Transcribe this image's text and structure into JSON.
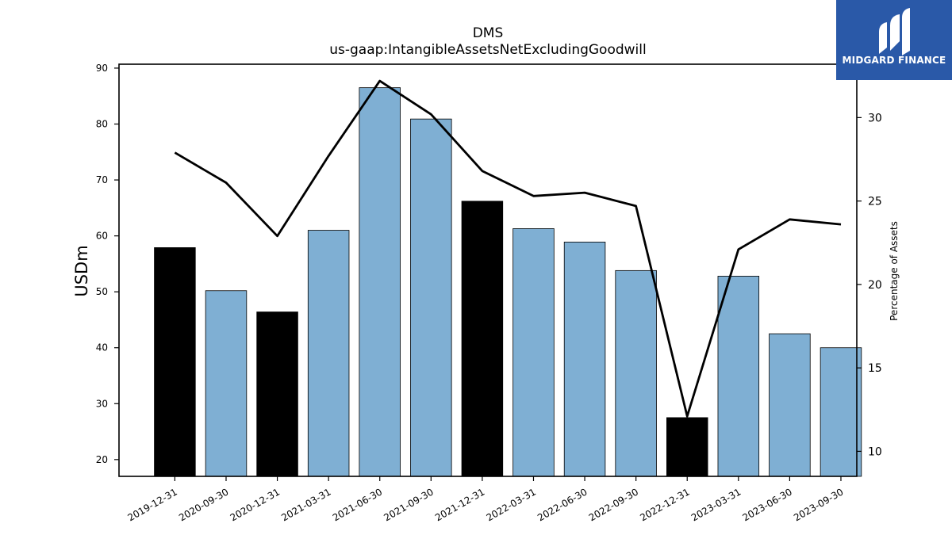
{
  "chart_data": {
    "type": "bar",
    "title": "DMS",
    "subtitle": "us-gaap:IntangibleAssetsNetExcludingGoodwill",
    "ylabel": "USDm",
    "y2label": "Percentage of Assets",
    "ylim": [
      17,
      90.7
    ],
    "y2lim": [
      8.5,
      33.2
    ],
    "yticks": [
      20,
      30,
      40,
      50,
      60,
      70,
      80,
      90
    ],
    "y2ticks": [
      10,
      15,
      20,
      25,
      30
    ],
    "categories": [
      "2019-12-31",
      "2020-09-30",
      "2020-12-31",
      "2021-03-31",
      "2021-06-30",
      "2021-09-30",
      "2021-12-31",
      "2022-03-31",
      "2022-06-30",
      "2022-09-30",
      "2022-12-31",
      "2023-03-31",
      "2023-06-30",
      "2023-09-30"
    ],
    "values": [
      57.9,
      50.2,
      46.4,
      61.0,
      86.5,
      80.9,
      66.2,
      61.3,
      58.9,
      53.8,
      27.5,
      52.8,
      42.5,
      40.0
    ],
    "highlight": [
      true,
      false,
      true,
      false,
      false,
      false,
      true,
      false,
      false,
      false,
      true,
      false,
      false,
      false
    ],
    "percent_of_assets": [
      27.9,
      26.1,
      22.9,
      27.7,
      32.2,
      30.2,
      26.8,
      25.3,
      25.5,
      24.7,
      12.1,
      22.1,
      23.9,
      23.6
    ],
    "colors": {
      "bar": "#7fafd3",
      "highlight_bar": "#000000",
      "line": "#000000"
    }
  },
  "logo": {
    "text": "MIDGARD FINANCE",
    "icon": "midgard-logo-icon"
  }
}
